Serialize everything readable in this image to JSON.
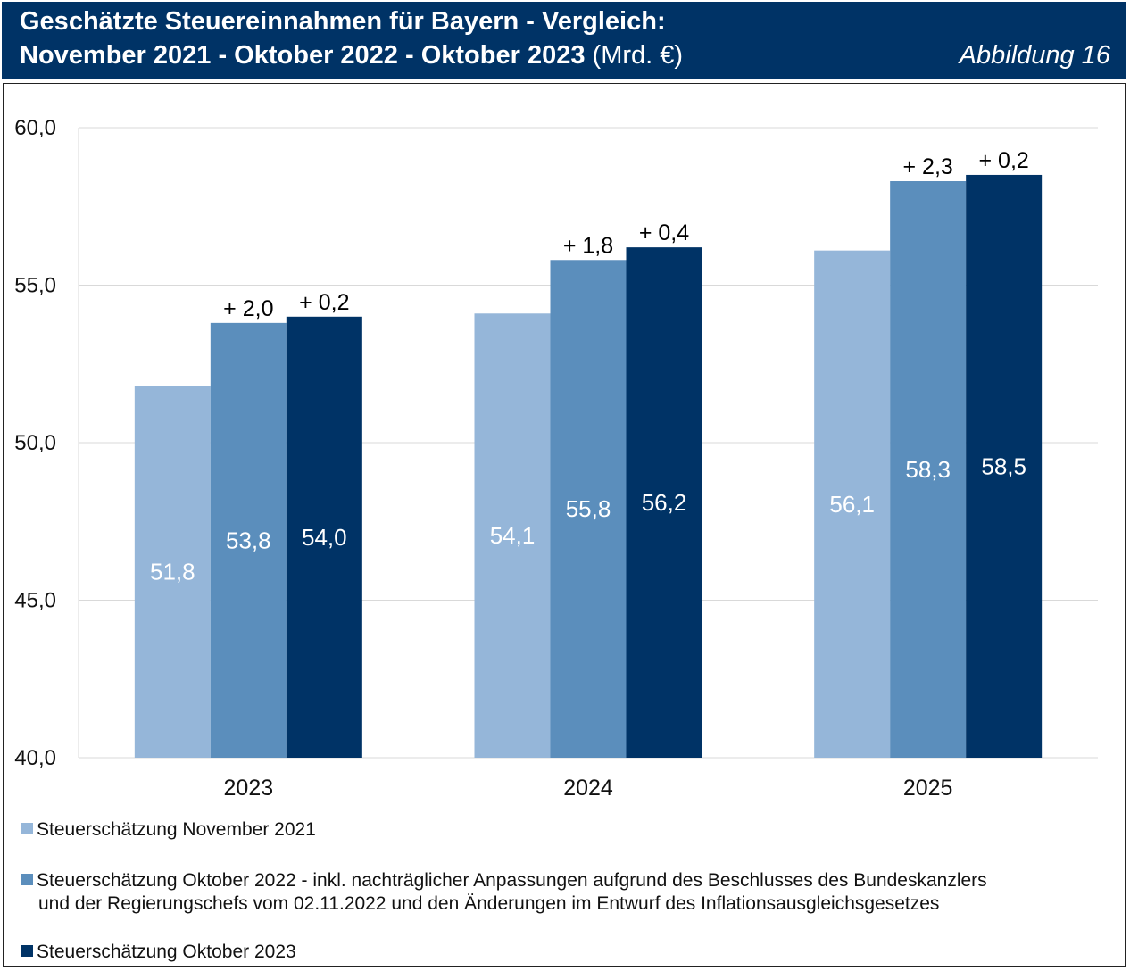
{
  "header": {
    "title_line1": "Geschätzte Steuereinnahmen für Bayern - Vergleich:",
    "title_line2_bold": "November 2021 - Oktober 2022 - Oktober 2023",
    "title_line2_unit": "(Mrd. €)",
    "figure_label": "Abbildung 16"
  },
  "colors": {
    "header_bg": "#003366",
    "nov2021": "#95b6d9",
    "okt2022": "#5b8ebc",
    "okt2023": "#003366"
  },
  "chart_data": {
    "type": "bar",
    "categories": [
      "2023",
      "2024",
      "2025"
    ],
    "series": [
      {
        "name": "Steuerschätzung November 2021",
        "values": [
          51.8,
          54.1,
          56.1
        ],
        "value_labels": [
          "51,8",
          "54,1",
          "56,1"
        ],
        "diff_labels": [
          "",
          "",
          ""
        ]
      },
      {
        "name": "Steuerschätzung Oktober 2022 - inkl. nachträglicher Anpassungen aufgrund des Beschlusses des Bundeskanzlers und der Regierungschefs vom 02.11.2022 und den Änderungen im Entwurf des Inflationsausgleichsgesetzes",
        "values": [
          53.8,
          55.8,
          58.3
        ],
        "value_labels": [
          "53,8",
          "55,8",
          "58,3"
        ],
        "diff_labels": [
          "+ 2,0",
          "+ 1,8",
          "+ 2,3"
        ]
      },
      {
        "name": "Steuerschätzung Oktober 2023",
        "values": [
          54.0,
          56.2,
          58.5
        ],
        "value_labels": [
          "54,0",
          "56,2",
          "58,5"
        ],
        "diff_labels": [
          "+ 0,2",
          "+ 0,4",
          "+ 0,2"
        ]
      }
    ],
    "ylim": [
      40,
      60
    ],
    "yticks": [
      40,
      45,
      50,
      55,
      60
    ],
    "ytick_labels": [
      "40,0",
      "45,0",
      "50,0",
      "55,0",
      "60,0"
    ],
    "grid": true,
    "legend_position": "bottom"
  },
  "legend": {
    "items": [
      "Steuerschätzung November 2021",
      "Steuerschätzung Oktober 2022 - inkl. nachträglicher Anpassungen aufgrund des Beschlusses des Bundeskanzlers",
      "und der Regierungschefs vom 02.11.2022 und den Änderungen im Entwurf des Inflationsausgleichsgesetzes",
      "Steuerschätzung Oktober 2023"
    ]
  }
}
